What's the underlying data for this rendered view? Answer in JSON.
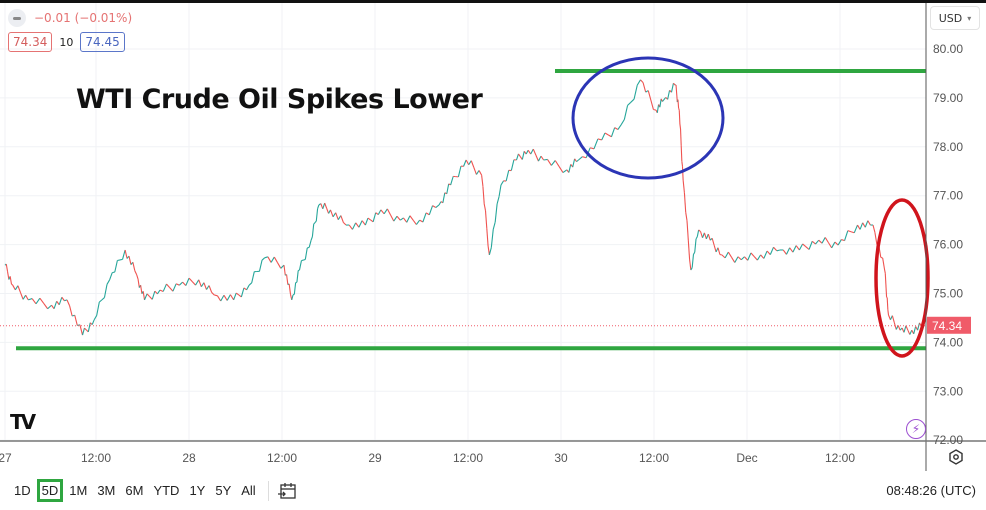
{
  "header": {
    "change": "−0.01 (−0.01%)",
    "bid": "74.34",
    "spread": "10",
    "ask": "74.45",
    "currency": "USD"
  },
  "annotation_title": "WTI Crude Oil Spikes Lower",
  "toolbar": {
    "ranges": [
      "1D",
      "5D",
      "1M",
      "3M",
      "6M",
      "YTD",
      "1Y",
      "5Y",
      "All"
    ],
    "active_range": "5D",
    "clock": "08:48:26 (UTC)"
  },
  "colors": {
    "up": "#26a69a",
    "down": "#ef5350",
    "support_line": "#2fa640",
    "blue_ellipse": "#2b35b5",
    "red_ellipse": "#d0141c",
    "last_price": "#f05b69"
  },
  "chart_data": {
    "type": "line",
    "title": "WTI Crude Oil Spikes Lower",
    "x_ticks": [
      "27",
      "12:00",
      "28",
      "12:00",
      "29",
      "12:00",
      "30",
      "12:00",
      "Dec",
      "12:00"
    ],
    "y_ticks": [
      "80.00",
      "79.00",
      "78.00",
      "77.00",
      "76.00",
      "75.00",
      "74.00",
      "73.00",
      "72.00"
    ],
    "ylim": [
      72,
      80
    ],
    "grid": true,
    "last_price": 74.34,
    "last_price_label": "74.34",
    "horizontal_lines": [
      79.55,
      73.88
    ],
    "points": [
      [
        "Nov 27 00:00",
        75.58
      ],
      [
        "Nov 27 01:00",
        75.17
      ],
      [
        "Nov 27 03:00",
        74.87
      ],
      [
        "Nov 27 06:00",
        74.76
      ],
      [
        "Nov 27 08:00",
        74.87
      ],
      [
        "Nov 27 10:00",
        74.15
      ],
      [
        "Nov 27 11:30",
        74.46
      ],
      [
        "Nov 27 13:30",
        75.28
      ],
      [
        "Nov 27 15:30",
        75.89
      ],
      [
        "Nov 27 17:00",
        75.38
      ],
      [
        "Nov 27 18:00",
        74.87
      ],
      [
        "Nov 27 20:00",
        75.07
      ],
      [
        "Nov 27 22:30",
        75.17
      ],
      [
        "Nov 28 01:00",
        75.28
      ],
      [
        "Nov 28 03:00",
        74.97
      ],
      [
        "Nov 28 05:30",
        74.87
      ],
      [
        "Nov 28 07:30",
        75.17
      ],
      [
        "Nov 28 09:30",
        75.73
      ],
      [
        "Nov 28 12:00",
        75.58
      ],
      [
        "Nov 28 13:00",
        74.87
      ],
      [
        "Nov 28 14:00",
        75.48
      ],
      [
        "Nov 28 15:30",
        76.09
      ],
      [
        "Nov 28 16:30",
        76.81
      ],
      [
        "Nov 28 18:00",
        76.71
      ],
      [
        "Nov 28 20:00",
        76.4
      ],
      [
        "Nov 28 22:30",
        76.4
      ],
      [
        "Nov 29 00:30",
        76.71
      ],
      [
        "Nov 29 03:00",
        76.5
      ],
      [
        "Nov 29 05:30",
        76.5
      ],
      [
        "Nov 29 08:00",
        76.81
      ],
      [
        "Nov 29 09:30",
        77.22
      ],
      [
        "Nov 29 11:30",
        77.73
      ],
      [
        "Nov 29 13:30",
        77.42
      ],
      [
        "Nov 29 14:30",
        75.79
      ],
      [
        "Nov 29 16:00",
        77.22
      ],
      [
        "Nov 29 18:00",
        77.73
      ],
      [
        "Nov 29 19:30",
        77.93
      ],
      [
        "Nov 29 21:30",
        77.73
      ],
      [
        "Nov 30 00:30",
        77.53
      ],
      [
        "Nov 30 02:00",
        77.73
      ],
      [
        "Nov 30 05:00",
        78.14
      ],
      [
        "Nov 30 07:30",
        78.45
      ],
      [
        "Nov 30 10:00",
        79.37
      ],
      [
        "Nov 30 12:00",
        78.75
      ],
      [
        "Nov 30 13:00",
        78.96
      ],
      [
        "Nov 30 14:30",
        79.26
      ],
      [
        "Nov 30 15:00",
        78.75
      ],
      [
        "Nov 30 15:30",
        77.32
      ],
      [
        "Nov 30 16:30",
        75.48
      ],
      [
        "Nov 30 17:30",
        76.3
      ],
      [
        "Nov 30 19:00",
        76.09
      ],
      [
        "Nov 30 20:30",
        75.79
      ],
      [
        "Nov 30 23:00",
        75.69
      ],
      [
        "Dec 1 01:30",
        75.79
      ],
      [
        "Dec 1 04:00",
        75.89
      ],
      [
        "Dec 1 06:30",
        75.89
      ],
      [
        "Dec 1 09:00",
        76.09
      ],
      [
        "Dec 1 11:30",
        75.99
      ],
      [
        "Dec 1 14:00",
        76.4
      ],
      [
        "Dec 1 16:00",
        76.4
      ],
      [
        "Dec 1 17:30",
        75.48
      ],
      [
        "Dec 1 18:00",
        74.56
      ],
      [
        "Dec 1 19:30",
        74.25
      ],
      [
        "Dec 1 21:00",
        74.25
      ],
      [
        "Dec 1 22:30",
        74.34
      ]
    ]
  }
}
